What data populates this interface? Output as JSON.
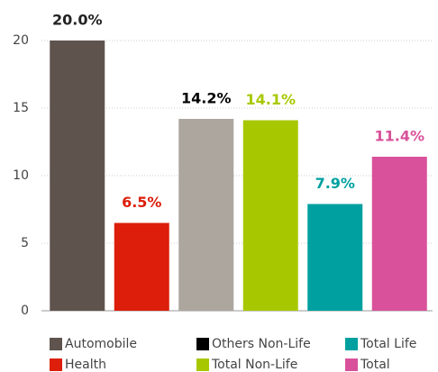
{
  "chart_data": {
    "type": "bar",
    "categories": [
      "Automobile",
      "Health",
      "Others Non-Life",
      "Total Non-Life",
      "Total Life",
      "Total"
    ],
    "values": [
      20.0,
      6.5,
      14.2,
      14.1,
      7.9,
      11.4
    ],
    "value_labels": [
      "20.0%",
      "6.5%",
      "14.2%",
      "14.1%",
      "7.9%",
      "11.4%"
    ],
    "colors": [
      "#5f534e",
      "#dc1e0a",
      "#aca69f",
      "#a7c800",
      "#00a0a0",
      "#d9519a"
    ],
    "legend_colors": [
      "#5f534e",
      "#dc1e0a",
      "#000000",
      "#a7c800",
      "#00a0a0",
      "#d9519a"
    ],
    "label_colors": [
      "#222222",
      "#dc1e0a",
      "#000000",
      "#a7c800",
      "#00a0a0",
      "#d9519a"
    ],
    "ylim": [
      0,
      20
    ],
    "yticks": [
      0,
      5,
      10,
      15,
      20
    ],
    "grid": true
  }
}
